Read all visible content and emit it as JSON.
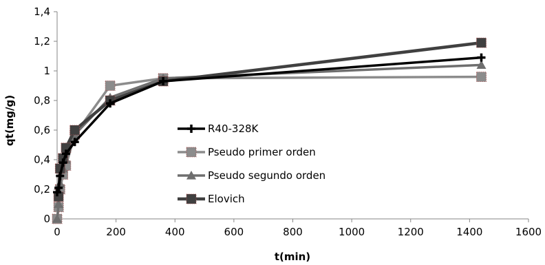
{
  "chart_data": {
    "type": "line",
    "title": "",
    "xlabel": "t(min)",
    "ylabel": "qt(mg/g)",
    "xlim": [
      0,
      1600
    ],
    "ylim": [
      0,
      1.4
    ],
    "x_ticks": [
      0,
      200,
      400,
      600,
      800,
      1000,
      1200,
      1400,
      1600
    ],
    "x_tick_labels": [
      "0",
      "200",
      "400",
      "600",
      "800",
      "1000",
      "1200",
      "1400",
      "1600"
    ],
    "y_ticks": [
      0,
      0.2,
      0.4,
      0.6,
      0.8,
      1.0,
      1.2,
      1.4
    ],
    "y_tick_labels": [
      "0",
      "0,2",
      "0,4",
      "0,6",
      "0,8",
      "1",
      "1,2",
      "1,4"
    ],
    "grid": false,
    "legend_position": "center-left",
    "series": [
      {
        "name": "R40-328K",
        "color": "#000000",
        "marker": "plus",
        "x": [
          0,
          5,
          10,
          20,
          30,
          60,
          180,
          360,
          1440
        ],
        "y": [
          0.18,
          0.21,
          0.29,
          0.38,
          0.44,
          0.52,
          0.78,
          0.93,
          1.09
        ]
      },
      {
        "name": "Pseudo primer orden",
        "color": "#8c8c8c",
        "marker": "square",
        "x": [
          0,
          5,
          10,
          20,
          30,
          60,
          180,
          360,
          1440
        ],
        "y": [
          0.0,
          0.08,
          0.2,
          0.3,
          0.36,
          0.57,
          0.9,
          0.95,
          0.96
        ]
      },
      {
        "name": "Pseudo segundo orden",
        "color": "#6e6e6e",
        "marker": "triangle",
        "x": [
          0,
          5,
          10,
          20,
          30,
          60,
          180,
          360,
          1440
        ],
        "y": [
          0.0,
          0.1,
          0.24,
          0.34,
          0.4,
          0.57,
          0.82,
          0.95,
          1.04
        ]
      },
      {
        "name": "Elovich",
        "color": "#404040",
        "marker": "square",
        "x": [
          5,
          10,
          20,
          30,
          60,
          180,
          360,
          1440
        ],
        "y": [
          0.15,
          0.34,
          0.41,
          0.48,
          0.6,
          0.8,
          0.93,
          1.19
        ]
      }
    ]
  }
}
